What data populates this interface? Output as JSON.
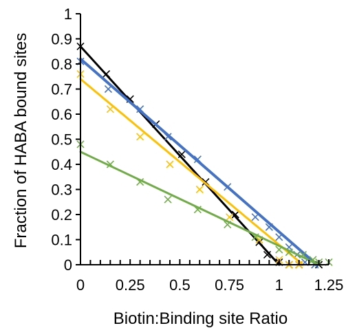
{
  "chart_data": {
    "type": "scatter",
    "title": "",
    "xlabel": "Biotin:Binding site Ratio",
    "ylabel": "Fraction of HABA bound sites",
    "xlim": [
      0,
      1.25
    ],
    "ylim": [
      0,
      1
    ],
    "x_ticks": [
      "0",
      "0.25",
      "0.5",
      "0.75",
      "1",
      "1.25"
    ],
    "y_ticks": [
      "0",
      "0.1",
      "0.2",
      "0.3",
      "0.4",
      "0.5",
      "0.6",
      "0.7",
      "0.8",
      "0.9",
      "1"
    ],
    "grid": false,
    "legend": "none",
    "series": [
      {
        "color": "#000000",
        "points": [
          [
            0,
            0.87
          ],
          [
            0.13,
            0.76
          ],
          [
            0.25,
            0.66
          ],
          [
            0.38,
            0.56
          ],
          [
            0.51,
            0.44
          ],
          [
            0.63,
            0.33
          ],
          [
            0.78,
            0.2
          ],
          [
            0.9,
            0.09
          ],
          [
            0.94,
            0.04
          ],
          [
            1.0,
            0.01
          ],
          [
            1.05,
            0.0
          ],
          [
            1.1,
            0.0
          ],
          [
            1.2,
            0.0
          ]
        ],
        "fit": [
          [
            0,
            0.87
          ],
          [
            1.0,
            0.0
          ]
        ]
      },
      {
        "color": "#4472C4",
        "points": [
          [
            0,
            0.81
          ],
          [
            0.14,
            0.7
          ],
          [
            0.3,
            0.62
          ],
          [
            0.44,
            0.51
          ],
          [
            0.59,
            0.42
          ],
          [
            0.74,
            0.31
          ],
          [
            0.88,
            0.19
          ],
          [
            0.95,
            0.15
          ],
          [
            1.0,
            0.11
          ],
          [
            1.05,
            0.07
          ],
          [
            1.09,
            0.04
          ],
          [
            1.13,
            0.01
          ],
          [
            1.18,
            0.0
          ]
        ],
        "fit": [
          [
            0,
            0.82
          ],
          [
            1.19,
            0.0
          ]
        ]
      },
      {
        "color": "#FFC000",
        "points": [
          [
            0,
            0.76
          ],
          [
            0.15,
            0.62
          ],
          [
            0.3,
            0.51
          ],
          [
            0.45,
            0.4
          ],
          [
            0.6,
            0.3
          ],
          [
            0.75,
            0.19
          ],
          [
            0.9,
            0.1
          ],
          [
            1.0,
            0.02
          ],
          [
            1.05,
            0.0
          ],
          [
            1.1,
            0.0
          ]
        ],
        "fit": [
          [
            0,
            0.74
          ],
          [
            1.12,
            0.0
          ]
        ]
      },
      {
        "color": "#70AD47",
        "points": [
          [
            0,
            0.48
          ],
          [
            0.15,
            0.4
          ],
          [
            0.3,
            0.33
          ],
          [
            0.44,
            0.26
          ],
          [
            0.59,
            0.22
          ],
          [
            0.74,
            0.16
          ],
          [
            0.88,
            0.11
          ],
          [
            1.0,
            0.06
          ],
          [
            1.05,
            0.05
          ],
          [
            1.12,
            0.04
          ],
          [
            1.17,
            0.02
          ],
          [
            1.2,
            0.01
          ],
          [
            1.25,
            0.01
          ]
        ],
        "fit": [
          [
            0,
            0.45
          ],
          [
            1.2,
            0.0
          ]
        ]
      }
    ]
  }
}
